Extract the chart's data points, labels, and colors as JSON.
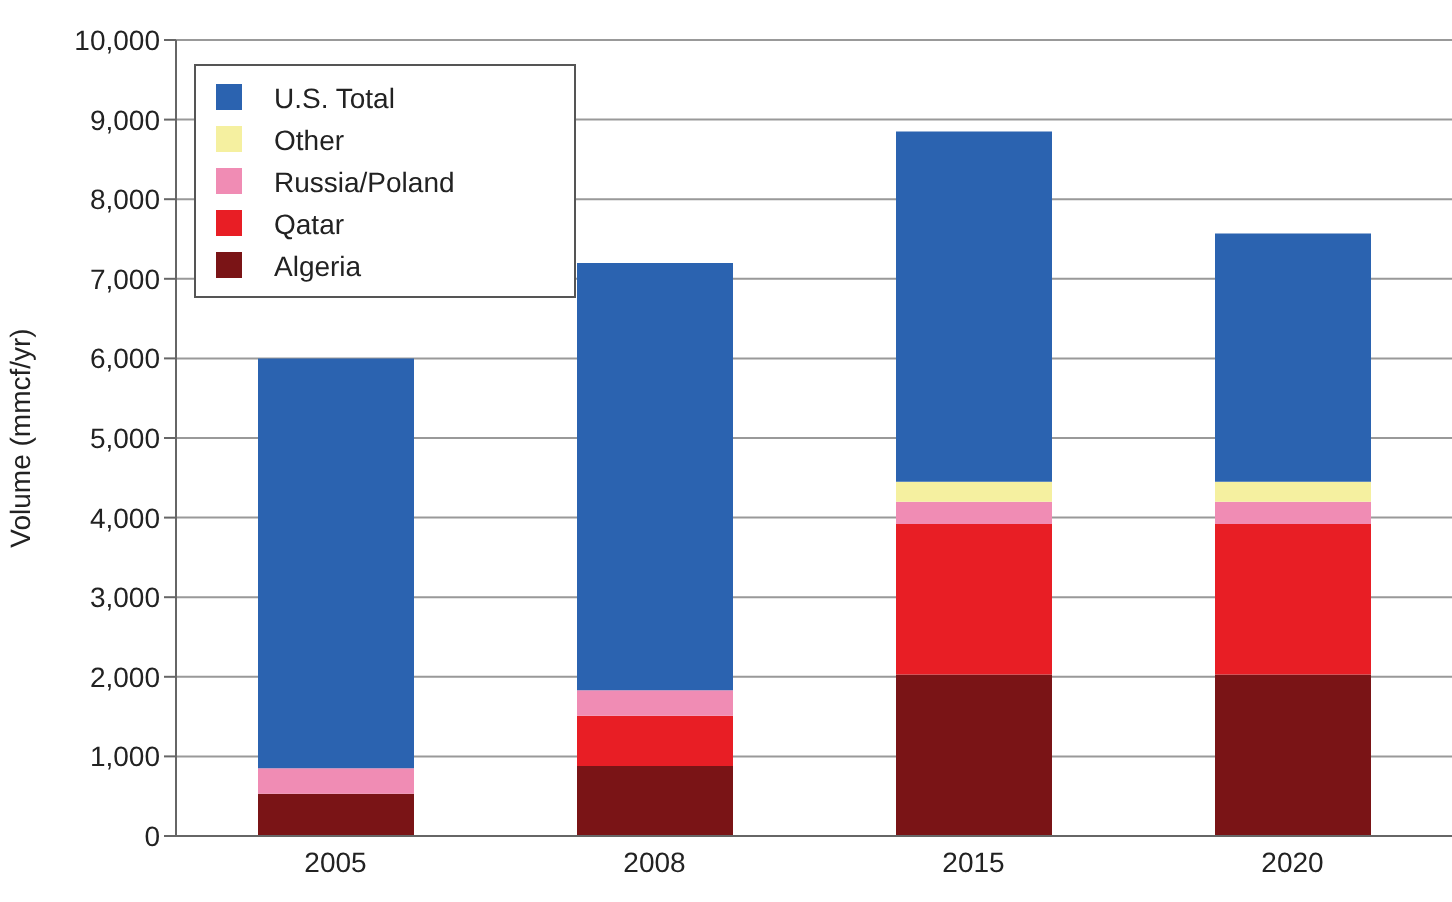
{
  "chart_data": {
    "type": "bar",
    "stacked": true,
    "ylabel": "Volume (mmcf/yr)",
    "categories": [
      "2005",
      "2008",
      "2015",
      "2020"
    ],
    "series": [
      {
        "name": "Algeria",
        "color": "#7a1416",
        "values": [
          530,
          880,
          2030,
          2030
        ]
      },
      {
        "name": "Qatar",
        "color": "#e81e25",
        "values": [
          0,
          630,
          1890,
          1890
        ]
      },
      {
        "name": "Russia/Poland",
        "color": "#f08cb4",
        "values": [
          320,
          320,
          280,
          280
        ]
      },
      {
        "name": "Other",
        "color": "#f5f0a0",
        "values": [
          0,
          0,
          250,
          250
        ]
      },
      {
        "name": "U.S. Total",
        "color": "#2b63b0",
        "values": [
          5150,
          5370,
          4400,
          3120
        ]
      }
    ],
    "ylim": [
      0,
      10000
    ],
    "yticks": [
      0,
      {
        "value": 1000,
        "label": "1,000"
      },
      {
        "value": 2000,
        "label": "2,000"
      },
      {
        "value": 3000,
        "label": "3,000"
      },
      {
        "value": 4000,
        "label": "4,000"
      },
      {
        "value": 5000,
        "label": "5,000"
      },
      {
        "value": 6000,
        "label": "6,000"
      },
      {
        "value": 7000,
        "label": "7,000"
      },
      {
        "value": 8000,
        "label": "8,000"
      },
      {
        "value": 9000,
        "label": "9,000"
      },
      {
        "value": 10000,
        "label": "10,000"
      }
    ],
    "grid": "y",
    "legend": "top left"
  }
}
